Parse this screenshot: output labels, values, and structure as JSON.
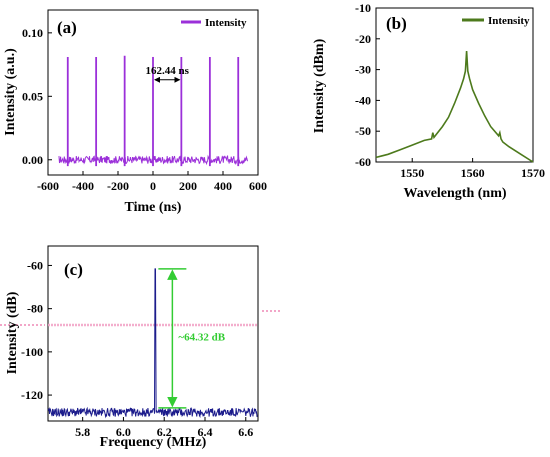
{
  "colors": {
    "purple": "#9b30d9",
    "green": "#4d7a1c",
    "navy": "#1c1c8c",
    "annot_green": "#33cc33",
    "pink": "#f2a6c8"
  },
  "chart_data": [
    {
      "type": "line",
      "panel_label": "(a)",
      "xlabel": "Time (ns)",
      "ylabel": "Intensity (a.u.)",
      "xlim": [
        -600,
        600
      ],
      "ylim": [
        -0.012,
        0.118
      ],
      "x_ticks": [
        -600,
        -400,
        -200,
        0,
        200,
        400,
        600
      ],
      "x_tick_labels": [
        "-600",
        "-400",
        "-200",
        "0",
        "200",
        "400",
        "600"
      ],
      "y_ticks": [
        0.0,
        0.05,
        0.1
      ],
      "y_tick_labels": [
        "0.00",
        "0.05",
        "0.10"
      ],
      "legend": {
        "position": "top-right",
        "entries": [
          "Intensity"
        ]
      },
      "series": [
        {
          "name": "Intensity",
          "baseline": 0.0,
          "pulse_times": [
            -487,
            -325,
            -162,
            0,
            162,
            325,
            487
          ],
          "pulse_peaks": [
            0.081,
            0.081,
            0.082,
            0.081,
            0.081,
            0.081,
            0.081
          ]
        }
      ],
      "annotation": {
        "text": "162.44 ns",
        "from": 0,
        "to": 162.44,
        "y": 0.081
      }
    },
    {
      "type": "line",
      "panel_label": "(b)",
      "xlabel": "Wavelength (nm)",
      "ylabel": "Intensity (dBm)",
      "xlim": [
        1544,
        1570
      ],
      "ylim": [
        -60,
        -10
      ],
      "x_ticks": [
        1550,
        1560,
        1570
      ],
      "x_tick_labels": [
        "1550",
        "1560",
        "1570"
      ],
      "y_ticks": [
        -60,
        -50,
        -40,
        -30,
        -20,
        -10
      ],
      "y_tick_labels": [
        "-60",
        "-50",
        "-40",
        "-30",
        "-20",
        "-10"
      ],
      "legend": {
        "position": "top-right",
        "entries": [
          "Intensity"
        ]
      },
      "series": [
        {
          "name": "Intensity",
          "x": [
            1544,
            1546,
            1548,
            1550,
            1552,
            1553.2,
            1553.4,
            1553.6,
            1554,
            1555,
            1556,
            1557,
            1558,
            1558.5,
            1558.8,
            1559,
            1559.2,
            1559.5,
            1560,
            1561,
            1562,
            1563,
            1564.3,
            1564.5,
            1564.7,
            1565,
            1566,
            1568,
            1570
          ],
          "y": [
            -58.5,
            -57.5,
            -56,
            -54.5,
            -53,
            -52.5,
            -50.5,
            -52,
            -51,
            -48.5,
            -45.5,
            -41,
            -36,
            -33,
            -30.5,
            -24,
            -30.5,
            -33,
            -36.5,
            -41,
            -45,
            -48.5,
            -51.5,
            -50.5,
            -52.5,
            -53.5,
            -55,
            -57.5,
            -60
          ]
        }
      ]
    },
    {
      "type": "line",
      "panel_label": "(c)",
      "xlabel": "Frequency (MHz)",
      "ylabel": "Intensity (dB)",
      "xlim": [
        5.63,
        6.66
      ],
      "ylim": [
        -132,
        -51
      ],
      "x_ticks": [
        5.8,
        6.0,
        6.2,
        6.4,
        6.6
      ],
      "x_tick_labels": [
        "5.8",
        "6.0",
        "6.2",
        "6.4",
        "6.6"
      ],
      "y_ticks": [
        -120,
        -100,
        -80,
        -60
      ],
      "y_tick_labels": [
        "-120",
        "-100",
        "-80",
        "-60"
      ],
      "series": [
        {
          "noise_floor": -128,
          "peak_frequency": 6.156,
          "peak_value": -61.6
        }
      ],
      "annotation": {
        "text": "~64.32 dB",
        "top": -61.6,
        "bottom": -125.9
      }
    }
  ]
}
